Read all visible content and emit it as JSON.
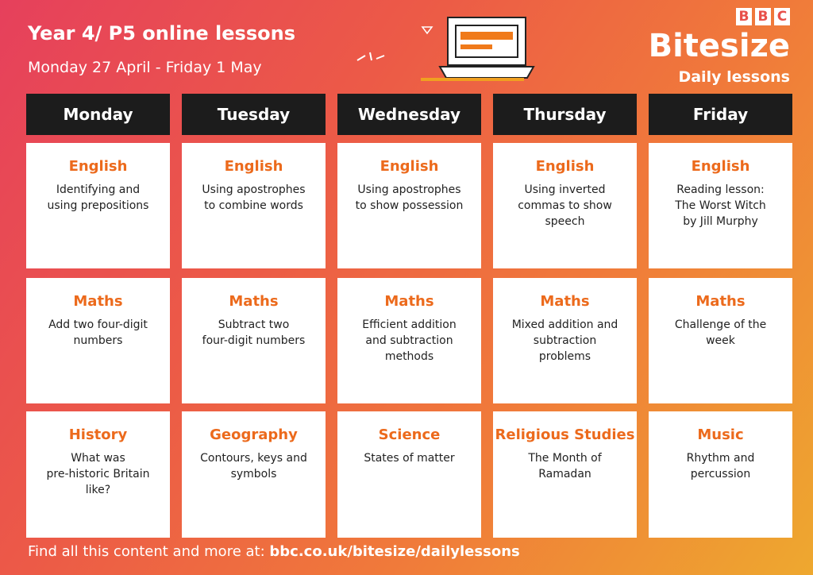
{
  "header": {
    "title": "Year 4/ P5 online lessons",
    "subtitle": "Monday 27 April - Friday 1 May"
  },
  "logo": {
    "bbc": [
      "B",
      "B",
      "C"
    ],
    "brand": "Bitesize",
    "tagline": "Daily lessons"
  },
  "days": [
    {
      "name": "Monday",
      "lessons": [
        {
          "subject": "English",
          "lines": [
            "Identifying and",
            "using prepositions"
          ]
        },
        {
          "subject": "Maths",
          "lines": [
            "Add two four-digit",
            "numbers"
          ]
        },
        {
          "subject": "History",
          "lines": [
            "What was",
            "pre-historic Britain",
            "like?"
          ]
        }
      ]
    },
    {
      "name": "Tuesday",
      "lessons": [
        {
          "subject": "English",
          "lines": [
            "Using apostrophes",
            "to combine words"
          ]
        },
        {
          "subject": "Maths",
          "lines": [
            "Subtract two",
            "four-digit numbers"
          ]
        },
        {
          "subject": "Geography",
          "lines": [
            "Contours, keys and",
            "symbols"
          ]
        }
      ]
    },
    {
      "name": "Wednesday",
      "lessons": [
        {
          "subject": "English",
          "lines": [
            "Using apostrophes",
            "to show possession"
          ]
        },
        {
          "subject": "Maths",
          "lines": [
            "Efficient addition",
            "and subtraction",
            "methods"
          ]
        },
        {
          "subject": "Science",
          "lines": [
            "States of matter"
          ]
        }
      ]
    },
    {
      "name": "Thursday",
      "lessons": [
        {
          "subject": "English",
          "lines": [
            "Using inverted",
            "commas to show",
            "speech"
          ]
        },
        {
          "subject": "Maths",
          "lines": [
            "Mixed addition and",
            "subtraction",
            "problems"
          ]
        },
        {
          "subject": "Religious Studies",
          "lines": [
            "The Month of",
            "Ramadan"
          ]
        }
      ]
    },
    {
      "name": "Friday",
      "lessons": [
        {
          "subject": "English",
          "lines": [
            "Reading lesson:",
            "The Worst Witch",
            "by Jill Murphy"
          ]
        },
        {
          "subject": "Maths",
          "lines": [
            "Challenge of the",
            "week"
          ]
        },
        {
          "subject": "Music",
          "lines": [
            "Rhythm and",
            "percussion"
          ]
        }
      ]
    }
  ],
  "footer": {
    "text": "Find all this content and more at:",
    "link": "bbc.co.uk/bitesize/dailylessons"
  }
}
